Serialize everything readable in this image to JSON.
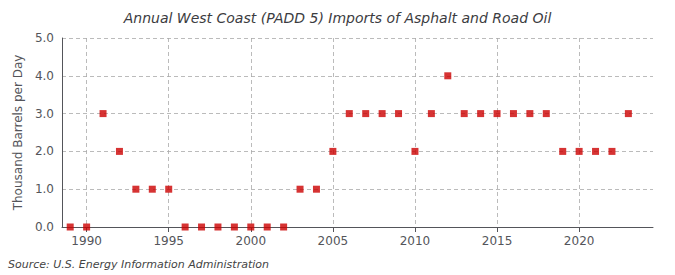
{
  "chart_data": {
    "type": "scatter",
    "title": "Annual West Coast (PADD 5) Imports of Asphalt and Road Oil",
    "ylabel": "Thousand Barrels per Day",
    "source": "Source: U.S. Energy Information Administration",
    "x": [
      1989,
      1990,
      1991,
      1992,
      1993,
      1994,
      1995,
      1996,
      1997,
      1998,
      1999,
      2000,
      2001,
      2002,
      2003,
      2004,
      2005,
      2006,
      2007,
      2008,
      2009,
      2010,
      2011,
      2012,
      2013,
      2014,
      2015,
      2016,
      2017,
      2018,
      2019,
      2020,
      2021,
      2022,
      2023
    ],
    "values": [
      0.0,
      0.0,
      3.0,
      2.0,
      1.0,
      1.0,
      1.0,
      0.0,
      0.0,
      0.0,
      0.0,
      0.0,
      0.0,
      0.0,
      1.0,
      1.0,
      2.0,
      3.0,
      3.0,
      3.0,
      3.0,
      2.0,
      3.0,
      4.0,
      3.0,
      3.0,
      3.0,
      3.0,
      3.0,
      3.0,
      2.0,
      2.0,
      2.0,
      2.0,
      3.0
    ],
    "color": "#cc0000",
    "marker": "square",
    "xlim": [
      1988.5,
      2024.5
    ],
    "ylim": [
      0.0,
      5.0
    ],
    "xticks": [
      1990,
      1995,
      2000,
      2005,
      2010,
      2015,
      2020
    ],
    "yticks": [
      {
        "value": 0,
        "label": "0.0"
      },
      {
        "value": 1,
        "label": "1.0"
      },
      {
        "value": 2,
        "label": "2.0"
      },
      {
        "value": 3,
        "label": "3.0"
      },
      {
        "value": 4,
        "label": "4.0"
      },
      {
        "value": 5,
        "label": "5.0"
      }
    ],
    "grid": true
  }
}
